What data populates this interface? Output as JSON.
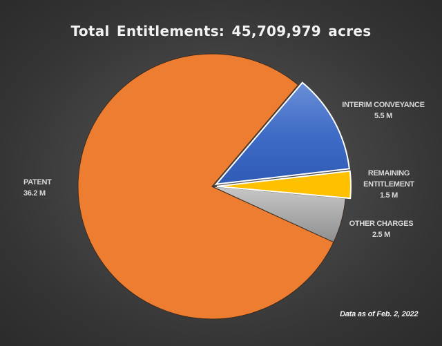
{
  "chart": {
    "title": "Total Entitlements: 45,709,979 acres",
    "footnote": "Data as of Feb. 2, 2022",
    "labels": {
      "patent": {
        "name": "PATENT",
        "value": "36.2 M"
      },
      "interim_conveyance": {
        "name": "INTERIM CONVEYANCE",
        "value": "5.5 M"
      },
      "remaining_entitlement": {
        "name_line1": "REMAINING",
        "name_line2": "ENTITLEMENT",
        "value": "1.5 M"
      },
      "other_charges": {
        "name": "OTHER CHARGES",
        "value": "2.5 M"
      }
    }
  },
  "chart_data": {
    "type": "pie",
    "title": "Total Entitlements: 45,709,979 acres",
    "total_acres": 45709979,
    "unit": "million acres",
    "categories": [
      "Interim Conveyance",
      "Remaining Entitlement",
      "Other Charges",
      "Patent"
    ],
    "values": [
      5.5,
      1.5,
      2.5,
      36.2
    ],
    "value_labels": [
      "5.5 M",
      "1.5 M",
      "2.5 M",
      "36.2 M"
    ],
    "colors": [
      "#4472C4",
      "#FFC000",
      "#A5A5A5",
      "#ED7D31"
    ],
    "exploded": [
      true,
      true,
      false,
      false
    ],
    "start_angle_deg": 50,
    "annotations": [
      "Data as of Feb. 2, 2022"
    ],
    "legend": "none (data labels beside slices)"
  }
}
